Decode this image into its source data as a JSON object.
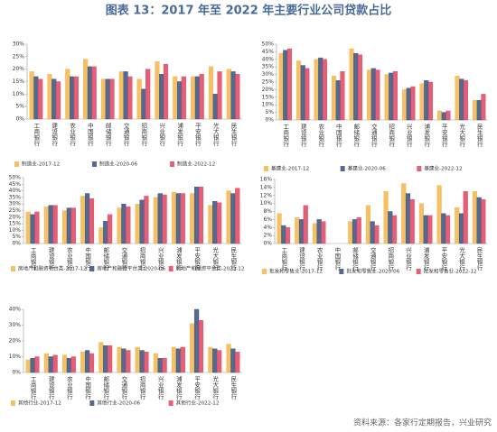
{
  "title": "图表 13：2017 年至 2022 年主要行业公司贷款占比",
  "source": "资料来源：各家行定期报告，兴业研究",
  "chart_data": [
    {
      "type": "bar",
      "grid": false,
      "legend": "bottom",
      "categories": [
        "工商银行",
        "建设银行",
        "农业银行",
        "中国银行",
        "邮储银行",
        "交通银行",
        "招商银行",
        "兴业银行",
        "浦发银行",
        "平安银行",
        "光大银行",
        "民生银行"
      ],
      "series": [
        {
          "name": "制造业-2017-12",
          "color": "#f5b54a",
          "values": [
            19,
            18,
            20,
            24,
            16,
            19,
            16,
            23,
            17,
            17,
            21,
            20
          ]
        },
        {
          "name": "制造业-2020-06",
          "color": "#34507e",
          "values": [
            17,
            16,
            17,
            21,
            16,
            19,
            12,
            18,
            15,
            17,
            10,
            19
          ]
        },
        {
          "name": "制造业-2022-12",
          "color": "#e0445f",
          "values": [
            16,
            15,
            17,
            21,
            16,
            17,
            20,
            22,
            17,
            18,
            19,
            18
          ]
        }
      ],
      "ylim": [
        0,
        30
      ],
      "yticks": [
        {
          "value": 0,
          "label": "0%"
        },
        {
          "value": 5,
          "label": "5%"
        },
        {
          "value": 10,
          "label": "10%"
        },
        {
          "value": 15,
          "label": "15%"
        },
        {
          "value": 20,
          "label": "20%"
        },
        {
          "value": 25,
          "label": "25%"
        },
        {
          "value": 30,
          "label": "30%"
        }
      ]
    },
    {
      "type": "bar",
      "grid": false,
      "legend": "bottom",
      "categories": [
        "工商银行",
        "建设银行",
        "农业银行",
        "中国银行",
        "邮储银行",
        "交通银行",
        "招商银行",
        "兴业银行",
        "浦发银行",
        "平安银行",
        "光大银行",
        "民生银行"
      ],
      "series": [
        {
          "name": "基建业-2017-12",
          "color": "#f5b54a",
          "values": [
            44,
            39,
            40,
            29,
            47,
            33,
            30,
            20,
            24,
            6,
            29,
            13
          ]
        },
        {
          "name": "基建业-2020-06",
          "color": "#34507e",
          "values": [
            46,
            36,
            41,
            26,
            44,
            34,
            31,
            21,
            26,
            5,
            27,
            13
          ]
        },
        {
          "name": "基建业-2022-12",
          "color": "#e0445f",
          "values": [
            47,
            34,
            40,
            32,
            43,
            33,
            32,
            22,
            25,
            6,
            26,
            17
          ]
        }
      ],
      "ylim": [
        0,
        50
      ],
      "yticks": [
        {
          "value": 0,
          "label": "0%"
        },
        {
          "value": 5,
          "label": "5%"
        },
        {
          "value": 10,
          "label": "10%"
        },
        {
          "value": 15,
          "label": "15%"
        },
        {
          "value": 20,
          "label": "20%"
        },
        {
          "value": 25,
          "label": "25%"
        },
        {
          "value": 30,
          "label": "30%"
        },
        {
          "value": 35,
          "label": "35%"
        },
        {
          "value": 40,
          "label": "40%"
        },
        {
          "value": 45,
          "label": "45%"
        },
        {
          "value": 50,
          "label": "50%"
        }
      ]
    },
    {
      "type": "bar",
      "grid": false,
      "legend": "bottom",
      "categories": [
        "工商银行",
        "建设银行",
        "农业银行",
        "中国银行",
        "邮储银行",
        "交通银行",
        "招商银行",
        "兴业银行",
        "浦发银行",
        "平安银行",
        "光大银行",
        "民生银行"
      ],
      "series": [
        {
          "name": "房地产和融资平台类-2017-12",
          "color": "#f5b54a",
          "values": [
            24,
            28,
            25,
            36,
            12,
            27,
            30,
            35,
            39,
            38,
            29,
            40
          ]
        },
        {
          "name": "房地产和融资平台类-2020-06",
          "color": "#34507e",
          "values": [
            22,
            29,
            27,
            38,
            17,
            30,
            33,
            38,
            38,
            43,
            32,
            38
          ]
        },
        {
          "name": "房地产和融资平台类-2022-12",
          "color": "#e0445f",
          "values": [
            24,
            29,
            27,
            34,
            22,
            28,
            36,
            37,
            38,
            43,
            31,
            42
          ]
        }
      ],
      "ylim": [
        0,
        50
      ],
      "yticks": [
        {
          "value": 0,
          "label": "0%"
        },
        {
          "value": 5,
          "label": "5%"
        },
        {
          "value": 10,
          "label": "10%"
        },
        {
          "value": 15,
          "label": "15%"
        },
        {
          "value": 20,
          "label": "20%"
        },
        {
          "value": 25,
          "label": "25%"
        },
        {
          "value": 30,
          "label": "30%"
        },
        {
          "value": 35,
          "label": "35%"
        },
        {
          "value": 40,
          "label": "40%"
        },
        {
          "value": 45,
          "label": "45%"
        },
        {
          "value": 50,
          "label": "50%"
        }
      ]
    },
    {
      "type": "bar",
      "grid": false,
      "legend": "bottom",
      "categories": [
        "工商银行",
        "建设银行",
        "农业银行",
        "中国银行",
        "邮储银行",
        "交通银行",
        "招商银行",
        "兴业银行",
        "浦发银行",
        "平安银行",
        "光大银行",
        "民生银行"
      ],
      "series": [
        {
          "name": "批发和零售业-2017-12",
          "color": "#f5b54a",
          "values": [
            7.5,
            6.5,
            5,
            null,
            5.5,
            9.5,
            13,
            15,
            10,
            14.5,
            9,
            13
          ]
        },
        {
          "name": "批发和零售业-2020-06",
          "color": "#34507e",
          "values": [
            4.5,
            6,
            6,
            null,
            6,
            5.5,
            8,
            12.5,
            7,
            7.5,
            7.5,
            11.5
          ]
        },
        {
          "name": "批发和零售业-2022-12",
          "color": "#e0445f",
          "values": [
            4,
            9.5,
            5.5,
            null,
            6.5,
            4.5,
            7,
            11,
            7,
            7,
            13,
            11
          ]
        }
      ],
      "ylim": [
        0,
        16
      ],
      "yticks": [
        {
          "value": 0,
          "label": "0%"
        },
        {
          "value": 2,
          "label": "2%"
        },
        {
          "value": 4,
          "label": "4%"
        },
        {
          "value": 6,
          "label": "6%"
        },
        {
          "value": 8,
          "label": "8%"
        },
        {
          "value": 10,
          "label": "10%"
        },
        {
          "value": 12,
          "label": "12%"
        },
        {
          "value": 14,
          "label": "14%"
        },
        {
          "value": 16,
          "label": "16%"
        }
      ]
    },
    {
      "type": "bar",
      "grid": false,
      "legend": "bottom",
      "categories": [
        "工商银行",
        "建设银行",
        "农业银行",
        "中国银行",
        "邮储银行",
        "交通银行",
        "招商银行",
        "兴业银行",
        "浦发银行",
        "平安银行",
        "光大银行",
        "民生银行"
      ],
      "series": [
        {
          "name": "其他行业-2017-12",
          "color": "#f5b54a",
          "values": [
            8,
            12,
            11,
            13,
            19,
            16,
            16,
            12,
            16,
            31,
            16,
            18
          ]
        },
        {
          "name": "其他行业-2020-06",
          "color": "#34507e",
          "values": [
            9,
            10,
            9,
            14,
            17,
            15,
            14,
            9,
            15,
            40,
            15,
            15
          ]
        },
        {
          "name": "其他行业-2022-12",
          "color": "#e0445f",
          "values": [
            10,
            11,
            10,
            12,
            17,
            14,
            13,
            9,
            16,
            33,
            14,
            13
          ]
        }
      ],
      "ylim": [
        0,
        40
      ],
      "yticks": [
        {
          "value": 0,
          "label": "0%"
        },
        {
          "value": 10,
          "label": "10%"
        },
        {
          "value": 20,
          "label": "20%"
        },
        {
          "value": 30,
          "label": "30%"
        },
        {
          "value": 40,
          "label": "40%"
        }
      ]
    }
  ]
}
